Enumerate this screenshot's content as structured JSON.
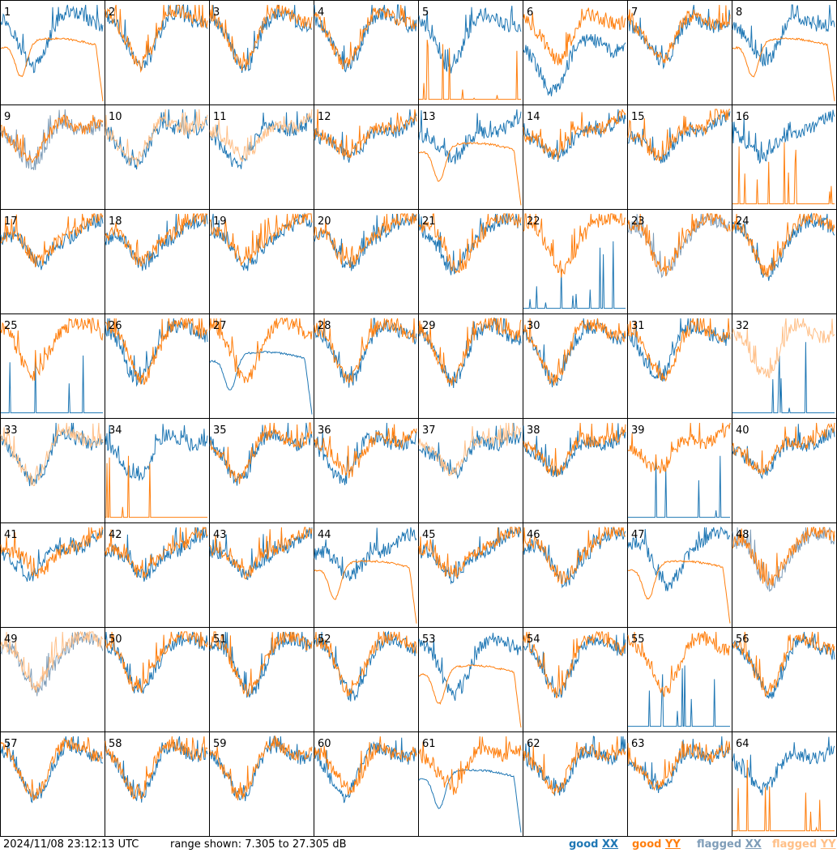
{
  "footer": {
    "timestamp": "2024/11/08 23:12:13 UTC",
    "range_text": "range shown: 7.305 to 27.305 dB"
  },
  "legend": [
    {
      "status": "good",
      "pol": "XX",
      "color": "#1f77b4"
    },
    {
      "status": "good",
      "pol": "YY",
      "color": "#ff7f0e"
    },
    {
      "status": "flagged",
      "pol": "XX",
      "color": "#7f9db8"
    },
    {
      "status": "flagged",
      "pol": "YY",
      "color": "#ffbf87"
    }
  ],
  "chart_data": {
    "type": "line",
    "panel_labels": [
      "1",
      "2",
      "3",
      "4",
      "5",
      "6",
      "7",
      "8",
      "9",
      "10",
      "11",
      "12",
      "13",
      "14",
      "15",
      "16",
      "17",
      "18",
      "19",
      "20",
      "21",
      "22",
      "23",
      "24",
      "25",
      "26",
      "27",
      "28",
      "29",
      "30",
      "31",
      "32",
      "33",
      "34",
      "35",
      "36",
      "37",
      "38",
      "39",
      "40",
      "41",
      "42",
      "43",
      "44",
      "45",
      "46",
      "47",
      "48",
      "49",
      "50",
      "51",
      "52",
      "53",
      "54",
      "55",
      "56",
      "57",
      "58",
      "59",
      "60",
      "61",
      "62",
      "63",
      "64"
    ],
    "ylim_db": [
      7.305,
      27.305
    ],
    "series": [
      {
        "pol": "XX",
        "profile": [
          "good",
          "good",
          "good",
          "good",
          "good",
          "weak",
          "good",
          "good",
          "flagged",
          "good",
          "good",
          "good",
          "good",
          "good",
          "good",
          "good",
          "good",
          "good",
          "good",
          "good",
          "good",
          "spiky",
          "flagged",
          "good",
          "spiky",
          "good",
          "smooth",
          "good",
          "good",
          "good",
          "good",
          "spiky",
          "good",
          "good",
          "good",
          "good",
          "good",
          "good",
          "spiky",
          "good",
          "good",
          "good",
          "good",
          "good",
          "good",
          "good",
          "good",
          "flagged",
          "flagged",
          "good",
          "good",
          "good",
          "good",
          "good",
          "spiky",
          "good",
          "good",
          "good",
          "good",
          "good",
          "smooth",
          "good",
          "good",
          "good"
        ]
      },
      {
        "pol": "YY",
        "profile": [
          "smooth",
          "good",
          "good",
          "good",
          "spiky",
          "good",
          "good",
          "smooth",
          "good",
          "flagged",
          "flagged",
          "good",
          "smooth",
          "good",
          "good",
          "spiky",
          "good",
          "good",
          "good",
          "good",
          "good",
          "good",
          "good",
          "good",
          "good",
          "good",
          "good",
          "good",
          "good",
          "good",
          "good",
          "flagged",
          "flagged",
          "spiky",
          "good",
          "good",
          "flagged",
          "good",
          "good",
          "good",
          "good",
          "good",
          "good",
          "smooth",
          "good",
          "good",
          "smooth",
          "good",
          "flagged",
          "good",
          "good",
          "good",
          "smooth",
          "good",
          "good",
          "good",
          "good",
          "good",
          "good",
          "good",
          "good",
          "good",
          "good",
          "spiky"
        ]
      }
    ]
  }
}
